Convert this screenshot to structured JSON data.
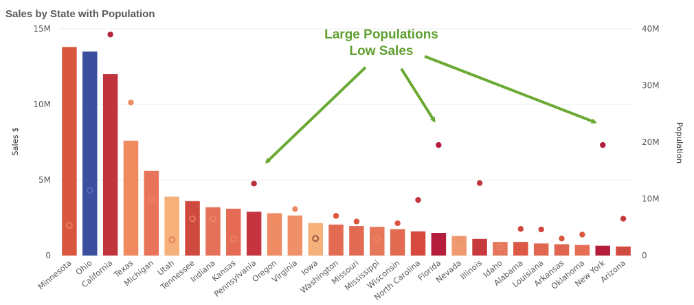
{
  "title": "Sales by State with Population",
  "annotation": {
    "line1": "Large Populations",
    "line2": "Low Sales"
  },
  "colors": {
    "annotation": "#5f9f2f",
    "grid": "#ececec"
  },
  "chart_data": {
    "type": "bar",
    "title": "Sales by State with Population",
    "categories": [
      "Minnesota",
      "Ohio",
      "California",
      "Texas",
      "Michigan",
      "Utah",
      "Tennessee",
      "Indiana",
      "Kansas",
      "Pennsylvania",
      "Oregon",
      "Virginia",
      "Iowa",
      "Washington",
      "Missouri",
      "Mississippi",
      "Wisconsin",
      "North Carolina",
      "Florida",
      "Nevada",
      "Illinois",
      "Idaho",
      "Alabama",
      "Louisiana",
      "Arkansas",
      "Oklahoma",
      "New York",
      "Arizona"
    ],
    "series": [
      {
        "name": "Sales $",
        "axis": "left",
        "values": [
          13.8,
          13.5,
          12.0,
          7.6,
          5.6,
          3.9,
          3.6,
          3.2,
          3.1,
          2.9,
          2.8,
          2.65,
          2.15,
          2.05,
          1.95,
          1.9,
          1.75,
          1.6,
          1.5,
          1.3,
          1.1,
          0.9,
          0.9,
          0.8,
          0.75,
          0.7,
          0.65,
          0.6
        ]
      },
      {
        "name": "Population",
        "axis": "right",
        "values": [
          5.3,
          11.5,
          39.0,
          27.0,
          9.9,
          2.8,
          6.5,
          6.5,
          2.9,
          12.7,
          3.9,
          8.2,
          3.0,
          7.0,
          6.0,
          2.9,
          5.7,
          9.8,
          19.5,
          2.8,
          12.8,
          1.5,
          4.7,
          4.6,
          3.0,
          3.7,
          19.5,
          6.5
        ]
      }
    ],
    "bar_colors": [
      "#d9573f",
      "#3b4f9e",
      "#c0343c",
      "#ee8a5e",
      "#e9735a",
      "#f6b07a",
      "#cf4a3e",
      "#e6715a",
      "#e56b55",
      "#c4353f",
      "#ee8b63",
      "#ef9068",
      "#f6b07a",
      "#e36b52",
      "#e36a52",
      "#e7775b",
      "#e36b52",
      "#d6493f",
      "#b41d3c",
      "#f09a72",
      "#c63a3e",
      "#e4775b",
      "#dc5744",
      "#e16650",
      "#e06450",
      "#e56e55",
      "#b41d3c",
      "#d14b40"
    ],
    "dot_colors": [
      "#ec8b64",
      "#5c6fc0",
      "#b4263a",
      "#ec8b64",
      "#ec8b64",
      "#e36a52",
      "#ec8b64",
      "#ec8b64",
      "#ec8b64",
      "#b8303c",
      "#ec8b64",
      "#ec8b64",
      "#7a3530",
      "#d9573f",
      "#d9573f",
      "#ec8b64",
      "#d9573f",
      "#c0343c",
      "#b41d3c",
      "#ec8b64",
      "#c0343c",
      "#ec8b64",
      "#d0463c",
      "#d0463c",
      "#d9573f",
      "#d9573f",
      "#b41d3c",
      "#c6383c"
    ],
    "dot_hollow": [
      true,
      true,
      false,
      false,
      true,
      true,
      true,
      true,
      true,
      false,
      true,
      false,
      true,
      false,
      false,
      true,
      false,
      false,
      false,
      true,
      false,
      true,
      false,
      false,
      false,
      false,
      false,
      false
    ],
    "ylabel_left": "Sales $",
    "ylabel_right": "Population",
    "ylim_left": [
      0,
      15
    ],
    "ylim_right": [
      0,
      40
    ],
    "yticks_left": [
      "0",
      "5M",
      "10M",
      "15M"
    ],
    "yticks_right": [
      "0",
      "10M",
      "20M",
      "30M",
      "40M"
    ],
    "grid": true
  }
}
